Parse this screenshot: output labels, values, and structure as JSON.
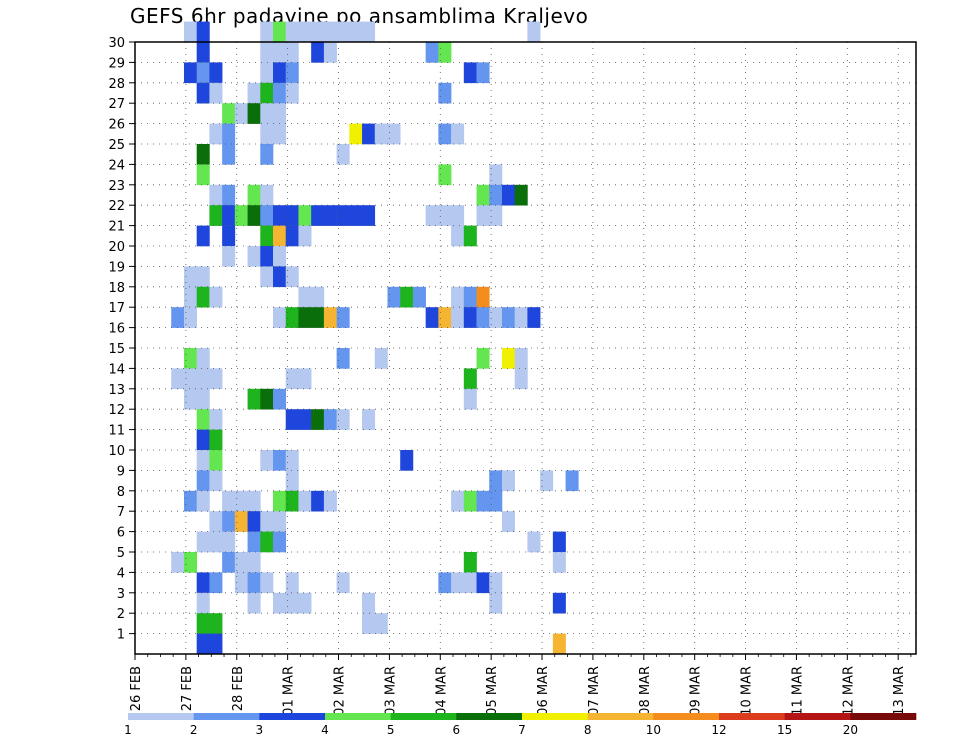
{
  "title": "GEFS 6hr padavine po ansamblima Kraljevo",
  "chart_data": {
    "type": "heatmap",
    "title": "GEFS 6hr padavine po ansamblima Kraljevo",
    "x_labels": [
      "26 FEB",
      "27 FEB",
      "28 FEB",
      "01 MAR",
      "02 MAR",
      "03 MAR",
      "04 MAR",
      "05 MAR",
      "06 MAR",
      "07 MAR",
      "08 MAR",
      "09 MAR",
      "10 MAR",
      "11 MAR",
      "12 MAR",
      "13 MAR"
    ],
    "y_ticks": [
      1,
      2,
      3,
      4,
      5,
      6,
      7,
      8,
      9,
      10,
      11,
      12,
      13,
      14,
      15,
      16,
      17,
      18,
      19,
      20,
      21,
      22,
      23,
      24,
      25,
      26,
      27,
      28,
      29,
      30
    ],
    "x_range_days": [
      0,
      16
    ],
    "y_range": [
      0,
      30
    ],
    "grid": true,
    "legend_placement": "bottom",
    "colorbar": {
      "labels": [
        "1",
        "2",
        "3",
        "4",
        "5",
        "6",
        "7",
        "8",
        "10",
        "12",
        "15",
        "20"
      ],
      "colors": [
        "#b4c8f0",
        "#6496f0",
        "#1e46dc",
        "#64e650",
        "#1eb41e",
        "#0a6e0a",
        "#f0f000",
        "#f5b432",
        "#f58c1e",
        "#dc3c1e",
        "#b41414",
        "#780a0a"
      ]
    },
    "levels_note": "cell value = color index 1..12 per colorbar",
    "cells": [
      [
        30,
        [
          [
            5,
            1
          ],
          [
            6,
            3
          ],
          [
            11,
            1
          ],
          [
            12,
            4
          ],
          [
            13,
            1
          ],
          [
            14,
            1
          ],
          [
            15,
            1
          ],
          [
            16,
            1
          ],
          [
            17,
            1
          ],
          [
            18,
            1
          ],
          [
            19,
            1
          ],
          [
            32,
            1
          ]
        ]
      ],
      [
        29,
        [
          [
            6,
            3
          ],
          [
            11,
            1
          ],
          [
            12,
            1
          ],
          [
            13,
            1
          ],
          [
            15,
            3
          ],
          [
            16,
            1
          ],
          [
            24,
            2
          ],
          [
            25,
            4
          ]
        ]
      ],
      [
        28,
        [
          [
            5,
            3
          ],
          [
            6,
            2
          ],
          [
            7,
            3
          ],
          [
            11,
            1
          ],
          [
            12,
            3
          ],
          [
            13,
            2
          ],
          [
            27,
            3
          ],
          [
            28,
            2
          ]
        ]
      ],
      [
        27,
        [
          [
            6,
            3
          ],
          [
            7,
            1
          ],
          [
            10,
            1
          ],
          [
            11,
            5
          ],
          [
            12,
            2
          ],
          [
            13,
            1
          ],
          [
            25,
            2
          ]
        ]
      ],
      [
        26,
        [
          [
            8,
            4
          ],
          [
            9,
            1
          ],
          [
            10,
            6
          ],
          [
            11,
            1
          ],
          [
            12,
            1
          ]
        ]
      ],
      [
        25,
        [
          [
            7,
            1
          ],
          [
            8,
            2
          ],
          [
            11,
            1
          ],
          [
            12,
            1
          ],
          [
            18,
            7
          ],
          [
            19,
            3
          ],
          [
            20,
            1
          ],
          [
            21,
            1
          ],
          [
            25,
            2
          ],
          [
            26,
            1
          ]
        ]
      ],
      [
        24,
        [
          [
            6,
            6
          ],
          [
            8,
            2
          ],
          [
            11,
            2
          ],
          [
            17,
            1
          ]
        ]
      ],
      [
        23,
        [
          [
            6,
            4
          ],
          [
            25,
            4
          ],
          [
            29,
            1
          ]
        ]
      ],
      [
        22,
        [
          [
            7,
            1
          ],
          [
            8,
            2
          ],
          [
            10,
            4
          ],
          [
            11,
            1
          ],
          [
            28,
            4
          ],
          [
            29,
            2
          ],
          [
            30,
            3
          ],
          [
            31,
            6
          ]
        ]
      ],
      [
        21,
        [
          [
            7,
            5
          ],
          [
            8,
            3
          ],
          [
            9,
            4
          ],
          [
            10,
            6
          ],
          [
            11,
            2
          ],
          [
            12,
            3
          ],
          [
            13,
            3
          ],
          [
            14,
            4
          ],
          [
            15,
            3
          ],
          [
            16,
            3
          ],
          [
            17,
            3
          ],
          [
            18,
            3
          ],
          [
            19,
            3
          ],
          [
            24,
            1
          ],
          [
            25,
            1
          ],
          [
            26,
            1
          ],
          [
            28,
            1
          ],
          [
            29,
            1
          ]
        ]
      ],
      [
        20,
        [
          [
            6,
            3
          ],
          [
            8,
            3
          ],
          [
            11,
            5
          ],
          [
            12,
            8
          ],
          [
            13,
            3
          ],
          [
            14,
            1
          ],
          [
            26,
            1
          ],
          [
            27,
            5
          ]
        ]
      ],
      [
        19,
        [
          [
            8,
            1
          ],
          [
            10,
            1
          ],
          [
            11,
            3
          ],
          [
            12,
            1
          ]
        ]
      ],
      [
        18,
        [
          [
            5,
            1
          ],
          [
            6,
            1
          ],
          [
            11,
            1
          ],
          [
            12,
            3
          ],
          [
            13,
            1
          ]
        ]
      ],
      [
        17,
        [
          [
            5,
            1
          ],
          [
            6,
            5
          ],
          [
            7,
            1
          ],
          [
            14,
            1
          ],
          [
            15,
            1
          ],
          [
            21,
            2
          ],
          [
            22,
            5
          ],
          [
            23,
            2
          ],
          [
            26,
            1
          ],
          [
            27,
            2
          ],
          [
            28,
            9
          ]
        ]
      ],
      [
        16,
        [
          [
            4,
            2
          ],
          [
            5,
            1
          ],
          [
            12,
            1
          ],
          [
            13,
            5
          ],
          [
            14,
            6
          ],
          [
            15,
            6
          ],
          [
            16,
            8
          ],
          [
            17,
            2
          ],
          [
            24,
            3
          ],
          [
            25,
            8
          ],
          [
            26,
            1
          ],
          [
            27,
            3
          ],
          [
            28,
            2
          ],
          [
            29,
            1
          ],
          [
            30,
            2
          ],
          [
            31,
            1
          ],
          [
            32,
            3
          ]
        ]
      ],
      [
        14,
        [
          [
            5,
            4
          ],
          [
            6,
            1
          ],
          [
            17,
            2
          ],
          [
            20,
            1
          ],
          [
            28,
            4
          ],
          [
            30,
            7
          ],
          [
            31,
            1
          ]
        ]
      ],
      [
        13,
        [
          [
            4,
            1
          ],
          [
            5,
            1
          ],
          [
            6,
            1
          ],
          [
            7,
            1
          ],
          [
            13,
            1
          ],
          [
            14,
            1
          ],
          [
            27,
            5
          ],
          [
            31,
            1
          ]
        ]
      ],
      [
        12,
        [
          [
            5,
            1
          ],
          [
            6,
            1
          ],
          [
            10,
            5
          ],
          [
            11,
            6
          ],
          [
            12,
            2
          ],
          [
            27,
            1
          ]
        ]
      ],
      [
        11,
        [
          [
            6,
            4
          ],
          [
            7,
            1
          ],
          [
            13,
            3
          ],
          [
            14,
            3
          ],
          [
            15,
            6
          ],
          [
            16,
            2
          ],
          [
            17,
            1
          ],
          [
            19,
            1
          ]
        ]
      ],
      [
        10,
        [
          [
            6,
            3
          ],
          [
            7,
            5
          ]
        ]
      ],
      [
        9,
        [
          [
            6,
            1
          ],
          [
            7,
            4
          ],
          [
            11,
            1
          ],
          [
            12,
            2
          ],
          [
            13,
            1
          ],
          [
            22,
            3
          ]
        ]
      ],
      [
        8,
        [
          [
            6,
            2
          ],
          [
            7,
            1
          ],
          [
            13,
            1
          ],
          [
            29,
            2
          ],
          [
            30,
            1
          ],
          [
            33,
            1
          ],
          [
            35,
            2
          ]
        ]
      ],
      [
        7,
        [
          [
            5,
            2
          ],
          [
            6,
            1
          ],
          [
            8,
            1
          ],
          [
            9,
            1
          ],
          [
            10,
            1
          ],
          [
            12,
            4
          ],
          [
            13,
            5
          ],
          [
            14,
            1
          ],
          [
            15,
            3
          ],
          [
            16,
            1
          ],
          [
            26,
            1
          ],
          [
            27,
            4
          ],
          [
            28,
            2
          ],
          [
            29,
            2
          ]
        ]
      ],
      [
        6,
        [
          [
            7,
            1
          ],
          [
            8,
            2
          ],
          [
            9,
            8
          ],
          [
            10,
            3
          ],
          [
            11,
            1
          ],
          [
            12,
            1
          ],
          [
            30,
            1
          ]
        ]
      ],
      [
        5,
        [
          [
            6,
            1
          ],
          [
            7,
            1
          ],
          [
            8,
            1
          ],
          [
            10,
            2
          ],
          [
            11,
            5
          ],
          [
            12,
            2
          ],
          [
            32,
            1
          ],
          [
            34,
            3
          ]
        ]
      ],
      [
        4,
        [
          [
            4,
            1
          ],
          [
            5,
            4
          ],
          [
            8,
            2
          ],
          [
            9,
            1
          ],
          [
            10,
            1
          ],
          [
            27,
            5
          ],
          [
            34,
            1
          ]
        ]
      ],
      [
        3,
        [
          [
            6,
            3
          ],
          [
            7,
            2
          ],
          [
            9,
            1
          ],
          [
            10,
            2
          ],
          [
            11,
            1
          ],
          [
            13,
            1
          ],
          [
            17,
            1
          ],
          [
            25,
            2
          ],
          [
            26,
            1
          ],
          [
            27,
            1
          ],
          [
            28,
            3
          ],
          [
            29,
            1
          ]
        ]
      ],
      [
        2,
        [
          [
            6,
            1
          ],
          [
            10,
            1
          ],
          [
            12,
            1
          ],
          [
            13,
            1
          ],
          [
            14,
            1
          ],
          [
            19,
            1
          ],
          [
            29,
            1
          ],
          [
            34,
            3
          ]
        ]
      ],
      [
        1,
        [
          [
            6,
            5
          ],
          [
            7,
            5
          ],
          [
            19,
            1
          ],
          [
            20,
            1
          ]
        ]
      ],
      [
        0,
        [
          [
            6,
            3
          ],
          [
            7,
            3
          ],
          [
            34,
            8
          ]
        ]
      ]
    ]
  }
}
